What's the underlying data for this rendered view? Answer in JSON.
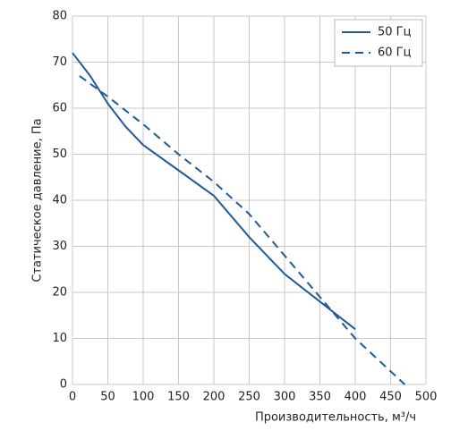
{
  "chart_data": {
    "type": "line",
    "x_label": "Производительность, м³/ч",
    "y_label": "Статическое давление, Па",
    "xlim": [
      0,
      500
    ],
    "xticks": [
      0,
      50,
      100,
      150,
      200,
      250,
      300,
      350,
      400,
      450,
      500
    ],
    "ylim": [
      0,
      80
    ],
    "yticks": [
      0,
      10,
      20,
      30,
      40,
      50,
      60,
      70,
      80
    ],
    "grid": true,
    "legend": "upper-right",
    "series": [
      {
        "name": "50 Гц",
        "color": "#1f5a9a",
        "dash": "solid",
        "x": [
          0,
          25,
          50,
          75,
          100,
          150,
          200,
          250,
          300,
          350,
          400
        ],
        "values": [
          72,
          67,
          61,
          56,
          52,
          46.5,
          41,
          32,
          24,
          18,
          12
        ]
      },
      {
        "name": "60 Гц",
        "color": "#1f5a9a",
        "dash": "dashed",
        "x": [
          10,
          50,
          100,
          150,
          200,
          250,
          300,
          350,
          400,
          470
        ],
        "values": [
          67,
          62.5,
          56.5,
          50,
          44,
          37,
          28,
          19,
          10,
          0
        ]
      }
    ]
  }
}
